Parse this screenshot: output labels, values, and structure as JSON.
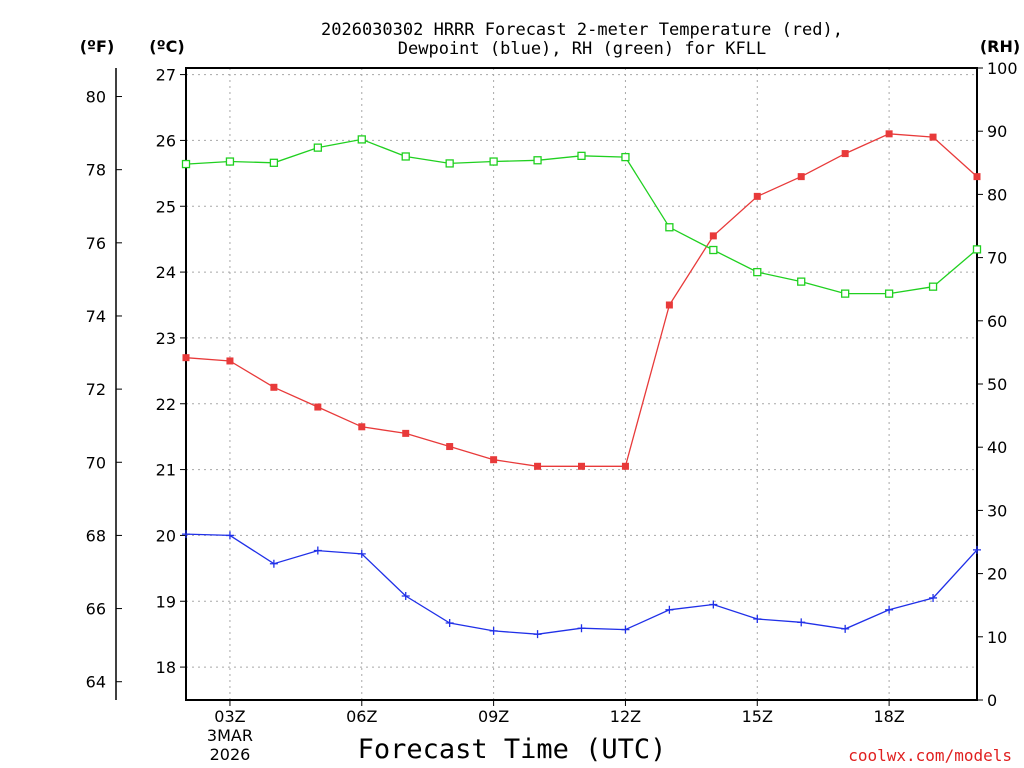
{
  "chart_data": {
    "type": "line",
    "title_line1": "2026030302 HRRR Forecast 2-meter Temperature (red),",
    "title_line2": "Dewpoint (blue), RH (green) for KFLL",
    "xlabel": "Forecast Time (UTC)",
    "credit": "coolwx.com/models",
    "units": {
      "fahrenheit": "(ºF)",
      "celsius": "(ºC)",
      "rh": "(RH)"
    },
    "x_hours": [
      2,
      3,
      4,
      5,
      6,
      7,
      8,
      9,
      10,
      11,
      12,
      13,
      14,
      15,
      16,
      17,
      18,
      19,
      20
    ],
    "x_ticks": [
      {
        "hour": 3,
        "label": "03Z",
        "sub1": "3MAR",
        "sub2": "2026"
      },
      {
        "hour": 6,
        "label": "06Z"
      },
      {
        "hour": 9,
        "label": "09Z"
      },
      {
        "hour": 12,
        "label": "12Z"
      },
      {
        "hour": 15,
        "label": "15Z"
      },
      {
        "hour": 18,
        "label": "18Z"
      }
    ],
    "xlim": [
      2,
      20
    ],
    "celsius_axis": {
      "ylim": [
        17.5,
        27.1
      ],
      "ticks": [
        18,
        19,
        20,
        21,
        22,
        23,
        24,
        25,
        26,
        27
      ]
    },
    "fahrenheit_axis": {
      "ticks": [
        64,
        66,
        68,
        70,
        72,
        74,
        76,
        78,
        80
      ]
    },
    "rh_axis": {
      "ylim": [
        0,
        100
      ],
      "ticks": [
        0,
        10,
        20,
        30,
        40,
        50,
        60,
        70,
        80,
        90,
        100
      ]
    },
    "series": [
      {
        "name": "Temperature",
        "axis": "celsius",
        "color": "#e83a3a",
        "marker": "filled-square",
        "values": [
          22.7,
          22.65,
          22.25,
          21.95,
          21.65,
          21.55,
          21.35,
          21.15,
          21.05,
          21.05,
          21.05,
          23.5,
          24.55,
          25.15,
          25.45,
          25.8,
          26.1,
          26.05,
          25.45
        ]
      },
      {
        "name": "Dewpoint",
        "axis": "celsius",
        "color": "#2030e8",
        "marker": "plus",
        "values": [
          20.02,
          20.0,
          19.57,
          19.77,
          19.72,
          19.08,
          18.67,
          18.55,
          18.5,
          18.59,
          18.57,
          18.87,
          18.95,
          18.73,
          18.68,
          18.58,
          18.87,
          19.05,
          19.78
        ]
      },
      {
        "name": "RH",
        "axis": "rh",
        "color": "#20d020",
        "marker": "open-square",
        "values": [
          84.8,
          85.2,
          85.0,
          87.4,
          88.7,
          86.0,
          84.9,
          85.2,
          85.4,
          86.1,
          85.9,
          74.8,
          71.2,
          67.7,
          66.2,
          64.3,
          64.3,
          65.4,
          71.3
        ]
      }
    ]
  }
}
